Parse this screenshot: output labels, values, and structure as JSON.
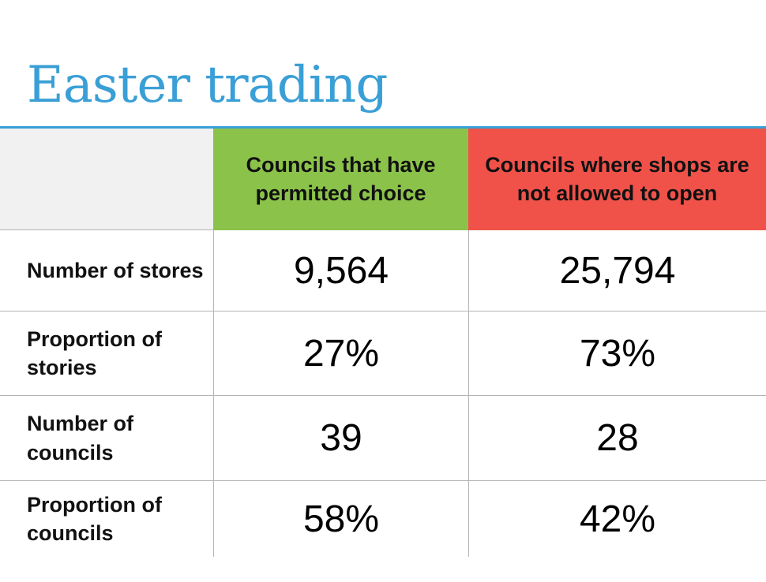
{
  "colors": {
    "accent": "#3a9fd6",
    "permitted": "#8bc34a",
    "not_allowed": "#f0524a"
  },
  "title": "Easter trading",
  "chart_data": {
    "type": "table",
    "title": "Easter trading",
    "columns": [
      "Councils that have permitted choice",
      "Councils where shops are not allowed to open"
    ],
    "rows": [
      {
        "label": "Number of stores",
        "values": [
          "9,564",
          "25,794"
        ]
      },
      {
        "label": "Proportion of stories",
        "values": [
          "27%",
          "73%"
        ]
      },
      {
        "label": "Number of councils",
        "values": [
          "39",
          "28"
        ]
      },
      {
        "label": "Proportion of councils",
        "values": [
          "58%",
          "42%"
        ]
      }
    ]
  }
}
